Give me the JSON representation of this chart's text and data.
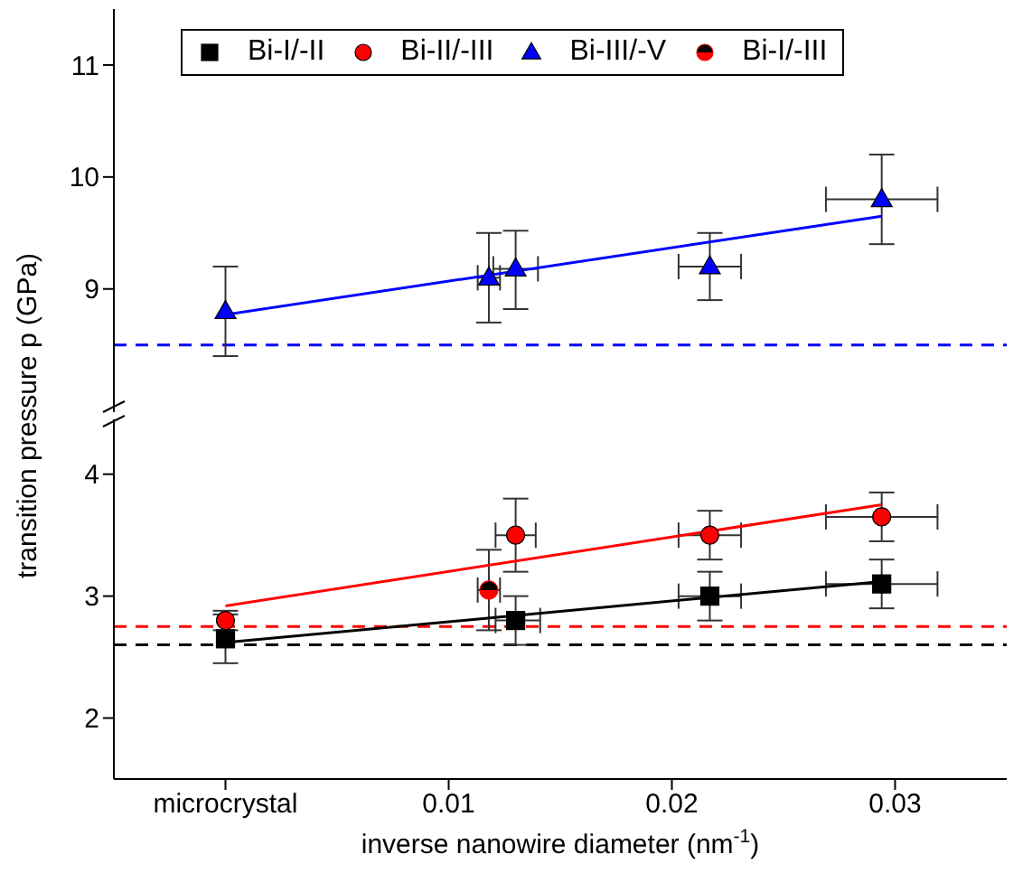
{
  "chart_data": [
    {
      "type": "scatter",
      "xlim": [
        -0.005,
        0.035
      ],
      "ylim": [
        7.9,
        11.5
      ],
      "yticks": [
        9,
        10,
        11
      ],
      "tick_labels": "y",
      "grid": false,
      "series": [
        {
          "name": "Bi-III/-V",
          "marker": "triangle",
          "color": "#0000ff",
          "x": [
            0,
            0.0118,
            0.013,
            0.0217,
            0.0294
          ],
          "values": [
            8.8,
            9.1,
            9.18,
            9.2,
            9.8
          ],
          "errors": [
            [
              8.4,
              9.2
            ],
            [
              8.7,
              9.5
            ],
            [
              8.82,
              9.52
            ],
            [
              8.9,
              9.5
            ],
            [
              9.4,
              10.2
            ]
          ],
          "xerrors": [
            null,
            [
              0.0113,
              0.0123
            ],
            [
              0.012,
              0.014
            ],
            [
              0.0203,
              0.0231
            ],
            [
              0.0269,
              0.0319
            ]
          ]
        },
        {
          "type": "line",
          "color": "#0000ff",
          "x": [
            0,
            0.0294
          ],
          "values": [
            8.77,
            9.65
          ]
        }
      ],
      "ref_lines": [
        {
          "axis": "y",
          "value": 8.5,
          "color": "#0000ff",
          "line_style": "dashed"
        }
      ]
    },
    {
      "type": "scatter",
      "xlabel": "inverse nanowire diameter (nm$^{-1}$)",
      "ylabel": "transition pressure p (GPa)",
      "xlim": [
        -0.005,
        0.035
      ],
      "xticks": [
        {
          "value": 0,
          "label": "microcrystal"
        },
        0.01,
        0.02,
        0.03
      ],
      "ylim": [
        1.5,
        4.45
      ],
      "yticks": [
        2,
        3,
        4
      ],
      "grid": false,
      "legend": "top",
      "series": [
        {
          "name": "Bi-I/-II",
          "marker": "square",
          "color": "#000000",
          "x": [
            0,
            0.013,
            0.0217,
            0.0294
          ],
          "values": [
            2.65,
            2.8,
            3.0,
            3.1
          ],
          "errors": [
            [
              2.45,
              2.85
            ],
            [
              2.6,
              3.0
            ],
            [
              2.8,
              3.2
            ],
            [
              2.9,
              3.3
            ]
          ],
          "xerrors": [
            null,
            [
              0.0121,
              0.0141
            ],
            [
              0.0203,
              0.0231
            ],
            [
              0.0269,
              0.0319
            ]
          ]
        },
        {
          "name": "Bi-II/-III",
          "marker": "circle",
          "color": "#ff0000",
          "x": [
            0,
            0.013,
            0.0217,
            0.0294
          ],
          "values": [
            2.8,
            3.5,
            3.5,
            3.65
          ],
          "errors": [
            [
              2.72,
              2.88
            ],
            [
              3.2,
              3.8
            ],
            [
              3.3,
              3.7
            ],
            [
              3.45,
              3.85
            ]
          ],
          "xerrors": [
            null,
            [
              0.0121,
              0.0139
            ],
            [
              0.0203,
              0.0231
            ],
            [
              0.0269,
              0.0319
            ]
          ]
        },
        {
          "name": "Bi-I/-III",
          "marker": "half_circle",
          "color": "#ff0000",
          "x": [
            0.0118
          ],
          "values": [
            3.05
          ],
          "errors": [
            [
              2.72,
              3.38
            ]
          ],
          "xerrors": [
            [
              0.0113,
              0.0123
            ]
          ]
        },
        {
          "type": "line",
          "color": "#ff0000",
          "x": [
            0,
            0.0294
          ],
          "values": [
            2.92,
            3.75
          ]
        },
        {
          "type": "line",
          "color": "#000000",
          "x": [
            0,
            0.0294
          ],
          "values": [
            2.62,
            3.12
          ]
        }
      ],
      "ref_lines": [
        {
          "axis": "y",
          "value": 2.75,
          "color": "#ff0000",
          "line_style": "dashed"
        },
        {
          "axis": "y",
          "value": 2.6,
          "color": "#000000",
          "line_style": "dashed"
        }
      ]
    }
  ]
}
